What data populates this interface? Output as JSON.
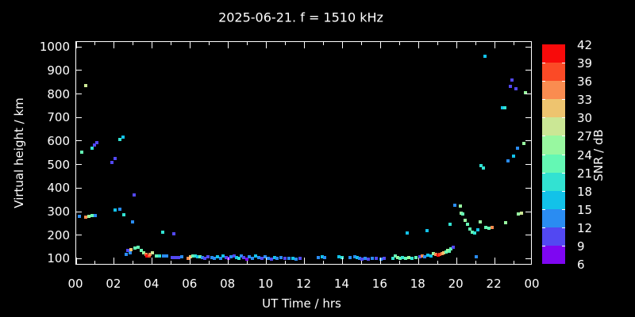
{
  "figure": {
    "background": "#000000",
    "foreground": "#ffffff"
  },
  "chart_data": {
    "type": "scatter",
    "title": "2025-06-21. f = 1510 kHz",
    "xlabel": "UT Time / hrs",
    "ylabel": "Virtual height / km",
    "grid": false,
    "x_range_hours": [
      0,
      24
    ],
    "x_major_tick_labels": [
      "00",
      "02",
      "04",
      "06",
      "08",
      "10",
      "12",
      "14",
      "16",
      "18",
      "20",
      "22",
      "00"
    ],
    "x_minor_ticks_every_hour": true,
    "y_range_km": [
      71,
      1021
    ],
    "y_ticks": [
      100,
      200,
      300,
      400,
      500,
      600,
      700,
      800,
      900,
      1000
    ],
    "colorbar": {
      "label": "SNR / dB",
      "value_min": 6,
      "value_max": 42,
      "step": 3,
      "tick_labels": [
        "42",
        "39",
        "36",
        "33",
        "30",
        "27",
        "24",
        "21",
        "18",
        "15",
        "12",
        "9",
        "6"
      ],
      "segments_top_to_bottom": [
        "#f80a0a",
        "#fb4a26",
        "#fa8c50",
        "#eec46f",
        "#cbe795",
        "#98f8a0",
        "#64f8b4",
        "#32e2d2",
        "#12c2e9",
        "#2a8cf2",
        "#5248f2",
        "#7e06f2"
      ]
    },
    "point_format": [
      "time_hr",
      "virtual_height_km",
      "snr_db"
    ],
    "points": [
      [
        0.3,
        553,
        22
      ],
      [
        0.5,
        835,
        28
      ],
      [
        0.83,
        569,
        19
      ],
      [
        0.96,
        582,
        10
      ],
      [
        1.08,
        592,
        10
      ],
      [
        1.88,
        510,
        10
      ],
      [
        2.04,
        526,
        10
      ],
      [
        2.29,
        605,
        19
      ],
      [
        2.46,
        618,
        16
      ],
      [
        0.17,
        280,
        13
      ],
      [
        0.5,
        276,
        34
      ],
      [
        0.67,
        280,
        25
      ],
      [
        0.83,
        283,
        22
      ],
      [
        1.0,
        283,
        13
      ],
      [
        2.04,
        306,
        16
      ],
      [
        2.29,
        309,
        13
      ],
      [
        2.5,
        286,
        19
      ],
      [
        2.96,
        256,
        13
      ],
      [
        3.04,
        372,
        10
      ],
      [
        4.54,
        214,
        19
      ],
      [
        5.13,
        207,
        10
      ],
      [
        2.63,
        118,
        13
      ],
      [
        2.71,
        135,
        10
      ],
      [
        2.83,
        125,
        13
      ],
      [
        2.88,
        140,
        31
      ],
      [
        3.08,
        144,
        22
      ],
      [
        3.25,
        148,
        22
      ],
      [
        3.42,
        135,
        22
      ],
      [
        3.54,
        125,
        25
      ],
      [
        3.67,
        118,
        34
      ],
      [
        3.71,
        112,
        40
      ],
      [
        3.83,
        112,
        37
      ],
      [
        3.88,
        118,
        34
      ],
      [
        4.0,
        125,
        28
      ],
      [
        4.21,
        112,
        22
      ],
      [
        4.38,
        112,
        19
      ],
      [
        4.58,
        112,
        13
      ],
      [
        4.75,
        112,
        13
      ],
      [
        5.05,
        105,
        10
      ],
      [
        5.21,
        105,
        10
      ],
      [
        5.38,
        105,
        10
      ],
      [
        5.54,
        108,
        13
      ],
      [
        5.88,
        102,
        34
      ],
      [
        6.0,
        108,
        31
      ],
      [
        6.13,
        112,
        22
      ],
      [
        6.25,
        110,
        19
      ],
      [
        6.38,
        108,
        16
      ],
      [
        6.5,
        108,
        22
      ],
      [
        6.63,
        105,
        13
      ],
      [
        6.75,
        102,
        10
      ],
      [
        6.92,
        108,
        10
      ],
      [
        7.13,
        105,
        13
      ],
      [
        7.25,
        102,
        13
      ],
      [
        7.42,
        108,
        16
      ],
      [
        7.58,
        102,
        13
      ],
      [
        7.71,
        110,
        16
      ],
      [
        7.88,
        105,
        10
      ],
      [
        8.0,
        100,
        7
      ],
      [
        8.13,
        108,
        13
      ],
      [
        8.29,
        112,
        10
      ],
      [
        8.42,
        105,
        16
      ],
      [
        8.54,
        102,
        19
      ],
      [
        8.67,
        110,
        13
      ],
      [
        8.79,
        105,
        10
      ],
      [
        8.96,
        98,
        7
      ],
      [
        9.08,
        108,
        13
      ],
      [
        9.25,
        102,
        13
      ],
      [
        9.42,
        112,
        16
      ],
      [
        9.58,
        105,
        13
      ],
      [
        9.75,
        102,
        10
      ],
      [
        9.92,
        108,
        13
      ],
      [
        10.08,
        102,
        13
      ],
      [
        10.25,
        98,
        10
      ],
      [
        10.42,
        105,
        16
      ],
      [
        10.58,
        102,
        13
      ],
      [
        10.75,
        105,
        13
      ],
      [
        10.96,
        100,
        10
      ],
      [
        11.17,
        103,
        13
      ],
      [
        11.38,
        100,
        16
      ],
      [
        11.58,
        98,
        13
      ],
      [
        11.79,
        102,
        10
      ],
      [
        12.75,
        105,
        13
      ],
      [
        12.92,
        108,
        16
      ],
      [
        13.08,
        105,
        13
      ],
      [
        13.83,
        108,
        16
      ],
      [
        14.0,
        105,
        19
      ],
      [
        14.42,
        105,
        13
      ],
      [
        14.67,
        108,
        13
      ],
      [
        14.79,
        105,
        16
      ],
      [
        14.88,
        100,
        13
      ],
      [
        15.04,
        97,
        10
      ],
      [
        15.21,
        103,
        13
      ],
      [
        15.38,
        97,
        10
      ],
      [
        15.58,
        100,
        13
      ],
      [
        15.79,
        102,
        10
      ],
      [
        16.04,
        97,
        13
      ],
      [
        16.21,
        100,
        10
      ],
      [
        16.67,
        103,
        19
      ],
      [
        16.79,
        110,
        22
      ],
      [
        16.92,
        105,
        25
      ],
      [
        17.04,
        103,
        22
      ],
      [
        17.17,
        105,
        19
      ],
      [
        17.33,
        103,
        22
      ],
      [
        17.42,
        210,
        16
      ],
      [
        17.5,
        105,
        25
      ],
      [
        17.67,
        103,
        19
      ],
      [
        17.88,
        105,
        22
      ],
      [
        18.08,
        108,
        10
      ],
      [
        18.21,
        112,
        34
      ],
      [
        18.33,
        108,
        13
      ],
      [
        18.46,
        220,
        16
      ],
      [
        18.5,
        115,
        16
      ],
      [
        18.67,
        110,
        16
      ],
      [
        18.79,
        120,
        25
      ],
      [
        18.92,
        118,
        34
      ],
      [
        19.04,
        115,
        40
      ],
      [
        19.13,
        118,
        37
      ],
      [
        19.25,
        122,
        34
      ],
      [
        19.33,
        125,
        31
      ],
      [
        19.46,
        128,
        22
      ],
      [
        19.54,
        135,
        25
      ],
      [
        19.63,
        130,
        22
      ],
      [
        19.71,
        142,
        22
      ],
      [
        19.83,
        148,
        10
      ],
      [
        19.67,
        245,
        19
      ],
      [
        19.9,
        327,
        13
      ],
      [
        20.21,
        323,
        25
      ],
      [
        20.25,
        293,
        25
      ],
      [
        20.33,
        290,
        22
      ],
      [
        20.46,
        264,
        25
      ],
      [
        20.58,
        245,
        22
      ],
      [
        20.71,
        225,
        22
      ],
      [
        20.83,
        212,
        22
      ],
      [
        20.96,
        208,
        19
      ],
      [
        21.04,
        108,
        13
      ],
      [
        21.13,
        224,
        16
      ],
      [
        21.25,
        257,
        25
      ],
      [
        21.54,
        234,
        22
      ],
      [
        21.71,
        230,
        22
      ],
      [
        21.88,
        234,
        34
      ],
      [
        22.58,
        254,
        25
      ],
      [
        23.25,
        290,
        25
      ],
      [
        23.42,
        293,
        28
      ],
      [
        21.29,
        494,
        19
      ],
      [
        21.42,
        487,
        19
      ],
      [
        21.5,
        961,
        16
      ],
      [
        22.42,
        741,
        16
      ],
      [
        22.54,
        741,
        19
      ],
      [
        22.71,
        517,
        13
      ],
      [
        22.83,
        833,
        10
      ],
      [
        22.92,
        860,
        10
      ],
      [
        23.0,
        537,
        16
      ],
      [
        23.13,
        823,
        10
      ],
      [
        23.21,
        570,
        13
      ],
      [
        23.54,
        590,
        25
      ],
      [
        23.63,
        805,
        25
      ]
    ]
  }
}
